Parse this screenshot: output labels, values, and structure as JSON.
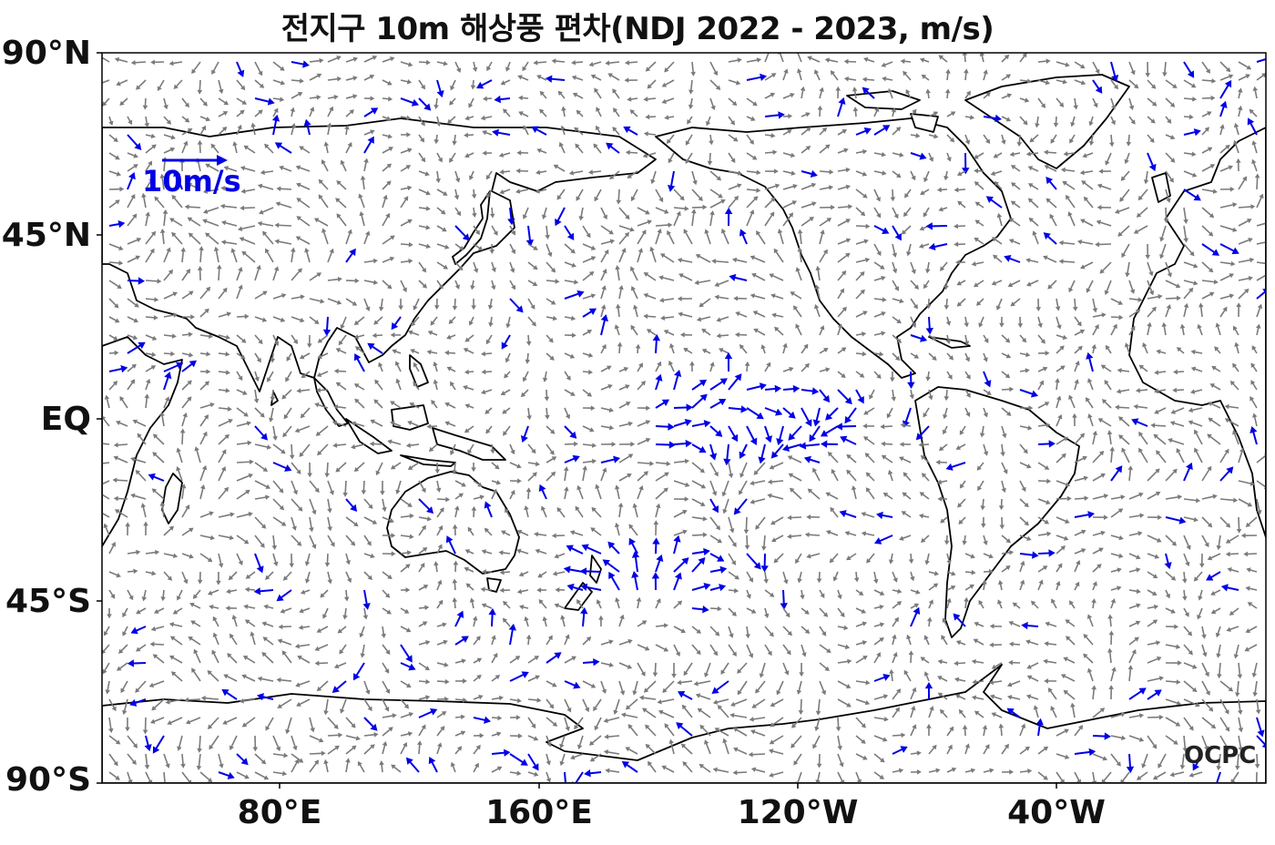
{
  "title": "전지구 10m 해상풍 편차(NDJ 2022 - 2023, m/s)",
  "axes": {
    "lat_labels": [
      "90°N",
      "45°N",
      "EQ",
      "45°S",
      "90°S"
    ],
    "lon_labels": [
      "80°E",
      "160°E",
      "120°W",
      "40°W"
    ]
  },
  "reference_vector": {
    "label": "10m/s",
    "speed_ms": 10,
    "color": "#0000e6"
  },
  "colors": {
    "anomaly_arrow": "#7a7a7a",
    "strong_arrow": "#0000e6",
    "coastline": "#000000",
    "frame": "#000000"
  },
  "logo": "OCPC",
  "icons": [
    "wind-vector-arrow-icon",
    "reference-arrow-icon"
  ]
}
